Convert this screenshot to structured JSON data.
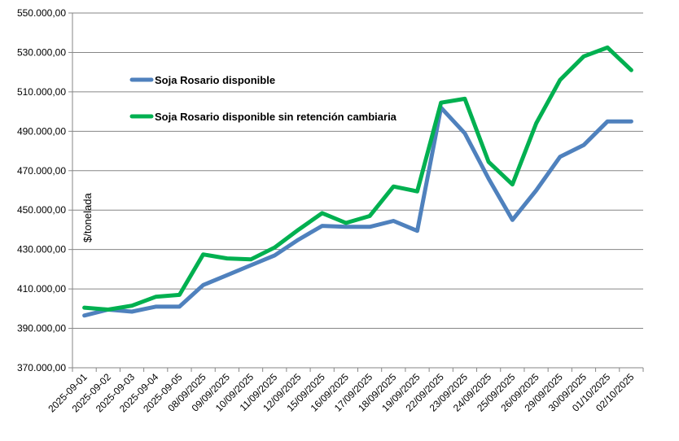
{
  "chart_data": {
    "type": "line",
    "title": "",
    "xlabel": "",
    "ylabel": "$/tonelada",
    "ylim": [
      370000,
      550000
    ],
    "y_ticks": [
      {
        "value": 370000,
        "label": "370.000,00"
      },
      {
        "value": 390000,
        "label": "390.000,00"
      },
      {
        "value": 410000,
        "label": "410.000,00"
      },
      {
        "value": 430000,
        "label": "430.000,00"
      },
      {
        "value": 450000,
        "label": "450.000,00"
      },
      {
        "value": 470000,
        "label": "470.000,00"
      },
      {
        "value": 490000,
        "label": "490.000,00"
      },
      {
        "value": 510000,
        "label": "510.000,00"
      },
      {
        "value": 530000,
        "label": "530.000,00"
      },
      {
        "value": 550000,
        "label": "550.000,00"
      }
    ],
    "grid": true,
    "legend_position": "top-left",
    "categories": [
      "2025-09-01",
      "2025-09-02",
      "2025-09-03",
      "2025-09-04",
      "2025-09-05",
      "08/09/2025",
      "09/09/2025",
      "10/09/2025",
      "11/09/2025",
      "12/09/2025",
      "15/09/2025",
      "16/09/2025",
      "17/09/2025",
      "18/09/2025",
      "19/09/2025",
      "22/09/2025",
      "23/09/2025",
      "24/09/2025",
      "25/09/2025",
      "26/09/2025",
      "29/09/2025",
      "30/09/2025",
      "01/10/2025",
      "02/10/2025"
    ],
    "series": [
      {
        "name": "Soja Rosario disponible",
        "color": "#4F81BD",
        "values": [
          396500,
          399500,
          398500,
          401000,
          401000,
          412000,
          417000,
          422000,
          427000,
          435000,
          442000,
          441500,
          441500,
          444500,
          439500,
          502000,
          489000,
          466000,
          445000,
          460000,
          477000,
          483000,
          495000,
          495000
        ]
      },
      {
        "name": "Soja Rosario disponible sin retención cambiaria",
        "color": "#00B050",
        "values": [
          400500,
          399500,
          401500,
          406000,
          407000,
          427500,
          425500,
          425000,
          431000,
          440000,
          448500,
          443500,
          447000,
          462000,
          459500,
          504500,
          506500,
          474500,
          463000,
          494000,
          516000,
          528000,
          532500,
          521000
        ]
      }
    ]
  }
}
